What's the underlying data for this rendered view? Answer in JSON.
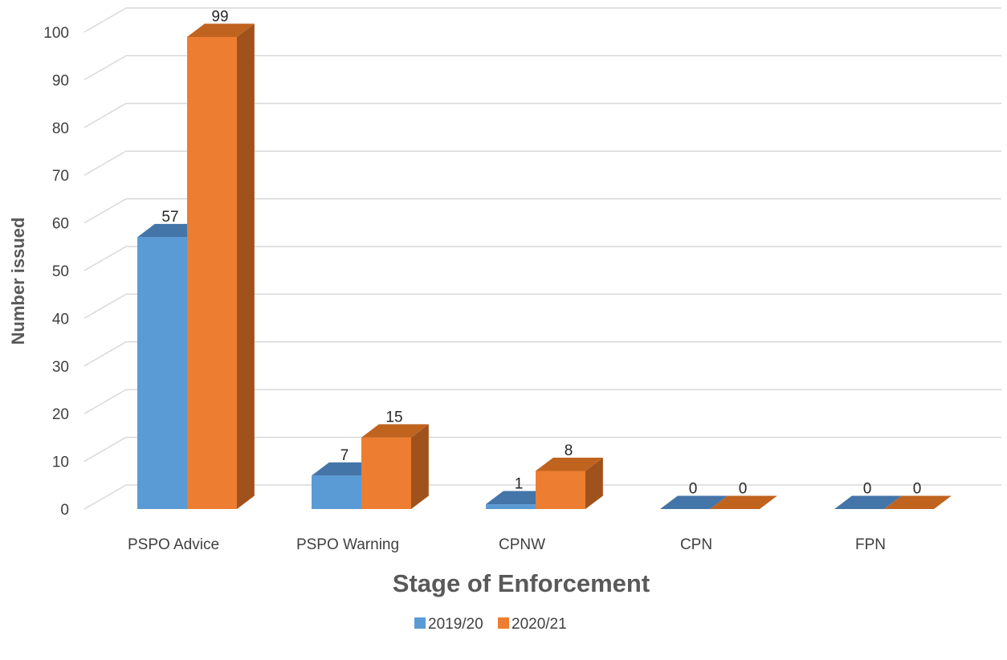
{
  "chart_data": {
    "type": "bar",
    "style": "3d-clustered-column",
    "categories": [
      "PSPO Advice",
      "PSPO Warning",
      "CPNW",
      "CPN",
      "FPN"
    ],
    "series": [
      {
        "name": "2019/20",
        "values": [
          57,
          7,
          1,
          0,
          0
        ],
        "color": "#5B9BD5",
        "top_color": "#4475A8",
        "side_color": "#3F6E9E"
      },
      {
        "name": "2020/21",
        "values": [
          99,
          15,
          8,
          0,
          0
        ],
        "color": "#ED7D31",
        "top_color": "#C0631F",
        "side_color": "#A0521C"
      }
    ],
    "xlabel": "Stage of Enforcement",
    "ylabel": "Number issued",
    "ylim": [
      0,
      100
    ],
    "yticks": [
      0,
      10,
      20,
      30,
      40,
      50,
      60,
      70,
      80,
      90,
      100
    ],
    "grid": true,
    "legend_position": "bottom"
  }
}
